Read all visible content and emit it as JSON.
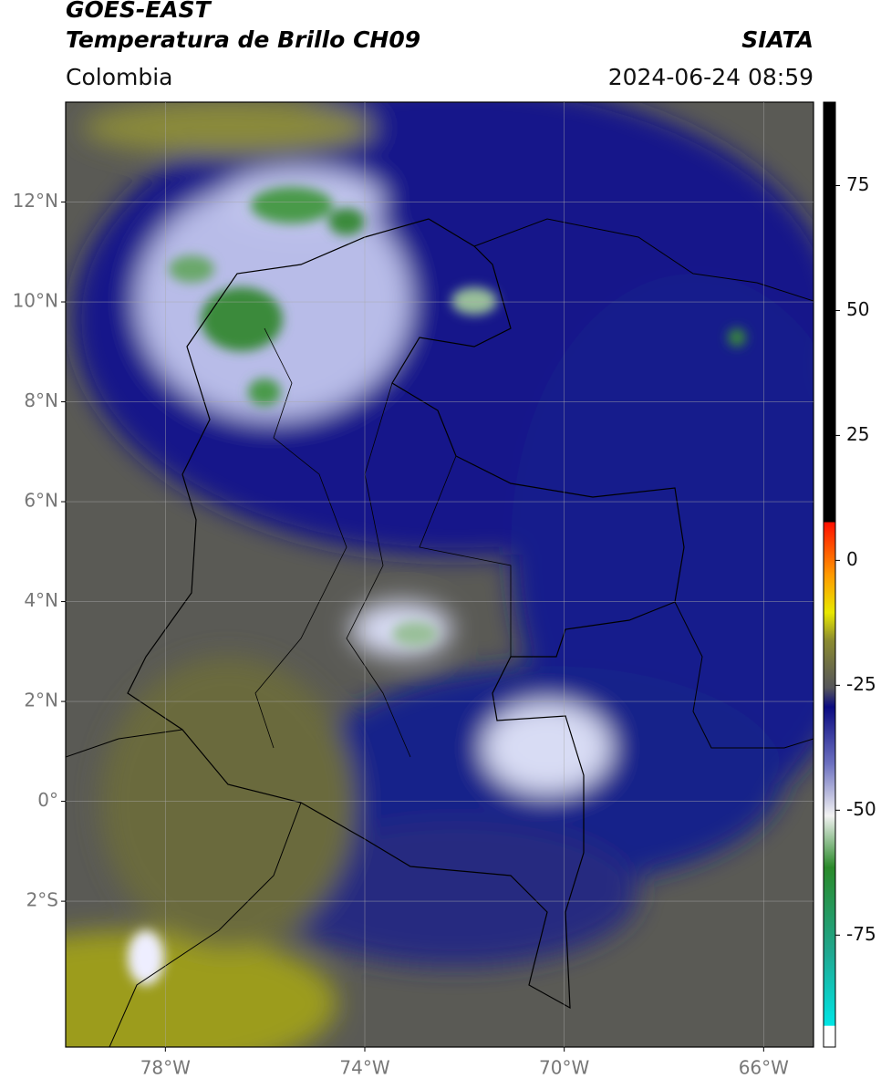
{
  "header": {
    "satellite": "GOES-EAST",
    "product": "Temperatura de Brillo CH09",
    "source": "SIATA",
    "region": "Colombia",
    "datetime": "2024-06-24 08:59"
  },
  "map": {
    "type": "map",
    "lonlim": [
      -80,
      -65
    ],
    "latlim": [
      -4.92,
      14
    ],
    "grid": true,
    "lonticks": [
      {
        "value": -78,
        "label": "78°W"
      },
      {
        "value": -74,
        "label": "74°W"
      },
      {
        "value": -70,
        "label": "70°W"
      },
      {
        "value": -66,
        "label": "66°W"
      }
    ],
    "latticks": [
      {
        "value": 12,
        "label": "12°N"
      },
      {
        "value": 10,
        "label": "10°N"
      },
      {
        "value": 8,
        "label": "8°N"
      },
      {
        "value": 6,
        "label": "6°N"
      },
      {
        "value": 4,
        "label": "4°N"
      },
      {
        "value": 2,
        "label": "2°N"
      },
      {
        "value": 0,
        "label": "0°"
      },
      {
        "value": -2,
        "label": "2°S"
      }
    ]
  },
  "colorbar": {
    "lim": [
      -97.4,
      91.7
    ],
    "ticks": [
      75,
      50,
      25,
      0,
      -25,
      -50,
      -75
    ]
  }
}
